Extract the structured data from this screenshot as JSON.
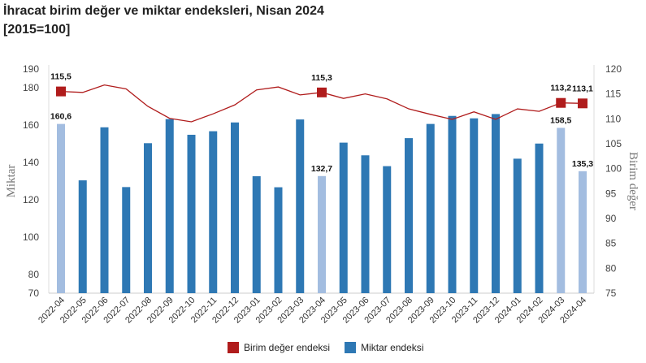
{
  "title_line1": "İhracat birim değer ve miktar endeksleri, Nisan 2024",
  "title_line2": "[2015=100]",
  "chart_data": {
    "type": "bar+line",
    "categories": [
      "2022-04",
      "2022-05",
      "2022-06",
      "2022-07",
      "2022-08",
      "2022-09",
      "2022-10",
      "2022-11",
      "2022-12",
      "2023-01",
      "2023-02",
      "2023-03",
      "2023-04",
      "2023-05",
      "2023-06",
      "2023-07",
      "2023-08",
      "2023-09",
      "2023-10",
      "2023-11",
      "2023-12",
      "2024-01",
      "2024-02",
      "2024-03",
      "2024-04"
    ],
    "series": [
      {
        "name": "Miktar endeksi",
        "type": "bar",
        "axis": "left",
        "color": "#2e78b4",
        "highlight_color": "#a3bde0",
        "values": [
          160.6,
          130.4,
          158.8,
          126.8,
          150.3,
          163.2,
          154.8,
          156.7,
          161.4,
          132.6,
          126.7,
          163.0,
          132.7,
          150.6,
          143.8,
          138.0,
          153.0,
          160.6,
          164.9,
          163.6,
          165.9,
          142.0,
          150.1,
          158.5,
          135.3
        ],
        "highlighted": [
          "2022-04",
          "2023-04",
          "2024-03",
          "2024-04"
        ],
        "labels": {
          "2022-04": "160,6",
          "2023-04": "132,7",
          "2024-03": "158,5",
          "2024-04": "135,3"
        }
      },
      {
        "name": "Birim değer endeksi",
        "type": "line",
        "axis": "right",
        "color": "#b01c1c",
        "values": [
          115.5,
          115.3,
          116.8,
          116.0,
          112.5,
          110.1,
          109.4,
          111.0,
          112.8,
          115.8,
          116.4,
          114.8,
          115.3,
          114.1,
          115.0,
          114.0,
          112.0,
          110.9,
          109.9,
          111.4,
          109.9,
          112.0,
          111.5,
          113.2,
          113.1
        ],
        "markers": [
          "2022-04",
          "2023-04",
          "2024-03",
          "2024-04"
        ],
        "labels": {
          "2022-04": "115,5",
          "2023-04": "115,3",
          "2024-03": "113,2",
          "2024-04": "113,1"
        }
      }
    ],
    "ylabel": "Miktar",
    "y2label": "Birim değer",
    "ylim": [
      70,
      190
    ],
    "yticks": [
      190,
      180,
      160,
      140,
      120,
      100,
      80,
      70
    ],
    "y2lim": [
      75,
      120
    ],
    "y2ticks": [
      120,
      115,
      110,
      105,
      100,
      95,
      90,
      85,
      80,
      75
    ],
    "grid": false,
    "legend_position": "bottom"
  }
}
